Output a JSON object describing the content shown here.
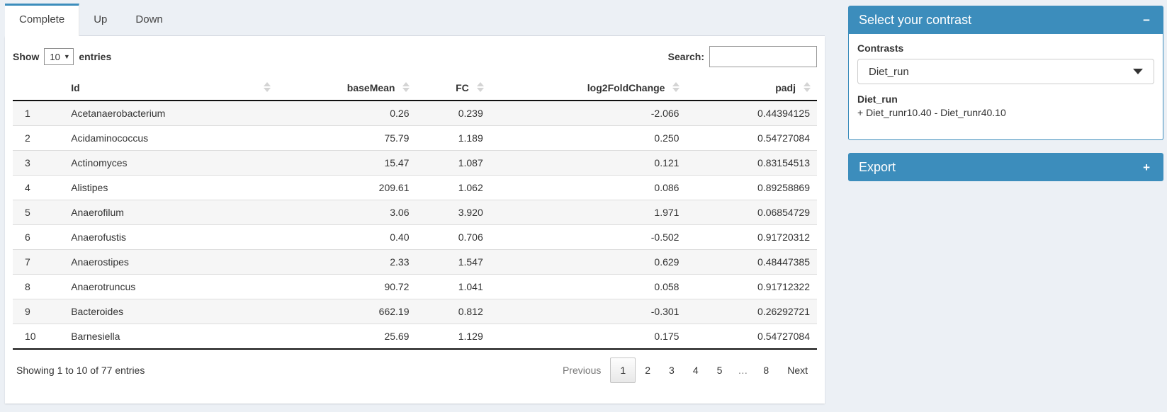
{
  "colors": {
    "primary": "#3c8dbc",
    "page_bg": "#ecf0f5"
  },
  "tabs": [
    {
      "label": "Complete",
      "active": true
    },
    {
      "label": "Up",
      "active": false
    },
    {
      "label": "Down",
      "active": false
    }
  ],
  "length_menu": {
    "label_before": "Show",
    "selected": "10",
    "label_after": "entries"
  },
  "search": {
    "label": "Search:",
    "value": ""
  },
  "table": {
    "columns": [
      {
        "label": "",
        "sortable": false,
        "align": "left"
      },
      {
        "label": "Id",
        "sortable": true,
        "align": "left"
      },
      {
        "label": "baseMean",
        "sortable": true,
        "align": "right"
      },
      {
        "label": "FC",
        "sortable": true,
        "align": "right"
      },
      {
        "label": "log2FoldChange",
        "sortable": true,
        "align": "right"
      },
      {
        "label": "padj",
        "sortable": true,
        "align": "right"
      }
    ],
    "rows": [
      [
        "1",
        "Acetanaerobacterium",
        "0.26",
        "0.239",
        "-2.066",
        "0.44394125"
      ],
      [
        "2",
        "Acidaminococcus",
        "75.79",
        "1.189",
        "0.250",
        "0.54727084"
      ],
      [
        "3",
        "Actinomyces",
        "15.47",
        "1.087",
        "0.121",
        "0.83154513"
      ],
      [
        "4",
        "Alistipes",
        "209.61",
        "1.062",
        "0.086",
        "0.89258869"
      ],
      [
        "5",
        "Anaerofilum",
        "3.06",
        "3.920",
        "1.971",
        "0.06854729"
      ],
      [
        "6",
        "Anaerofustis",
        "0.40",
        "0.706",
        "-0.502",
        "0.91720312"
      ],
      [
        "7",
        "Anaerostipes",
        "2.33",
        "1.547",
        "0.629",
        "0.48447385"
      ],
      [
        "8",
        "Anaerotruncus",
        "90.72",
        "1.041",
        "0.058",
        "0.91712322"
      ],
      [
        "9",
        "Bacteroides",
        "662.19",
        "0.812",
        "-0.301",
        "0.26292721"
      ],
      [
        "10",
        "Barnesiella",
        "25.69",
        "1.129",
        "0.175",
        "0.54727084"
      ]
    ]
  },
  "info": "Showing 1 to 10 of 77 entries",
  "pagination": [
    {
      "label": "Previous",
      "type": "disabled"
    },
    {
      "label": "1",
      "type": "active"
    },
    {
      "label": "2",
      "type": "page"
    },
    {
      "label": "3",
      "type": "page"
    },
    {
      "label": "4",
      "type": "page"
    },
    {
      "label": "5",
      "type": "page"
    },
    {
      "label": "…",
      "type": "ellipsis"
    },
    {
      "label": "8",
      "type": "page"
    },
    {
      "label": "Next",
      "type": "page"
    }
  ],
  "contrast_panel": {
    "title": "Select your contrast",
    "collapse_icon": "−",
    "field_label": "Contrasts",
    "selected_contrast": "Diet_run",
    "contrast_name": "Diet_run",
    "contrast_formula": "+ Diet_runr10.40 - Diet_runr40.10"
  },
  "export_panel": {
    "title": "Export",
    "expand_icon": "+"
  }
}
